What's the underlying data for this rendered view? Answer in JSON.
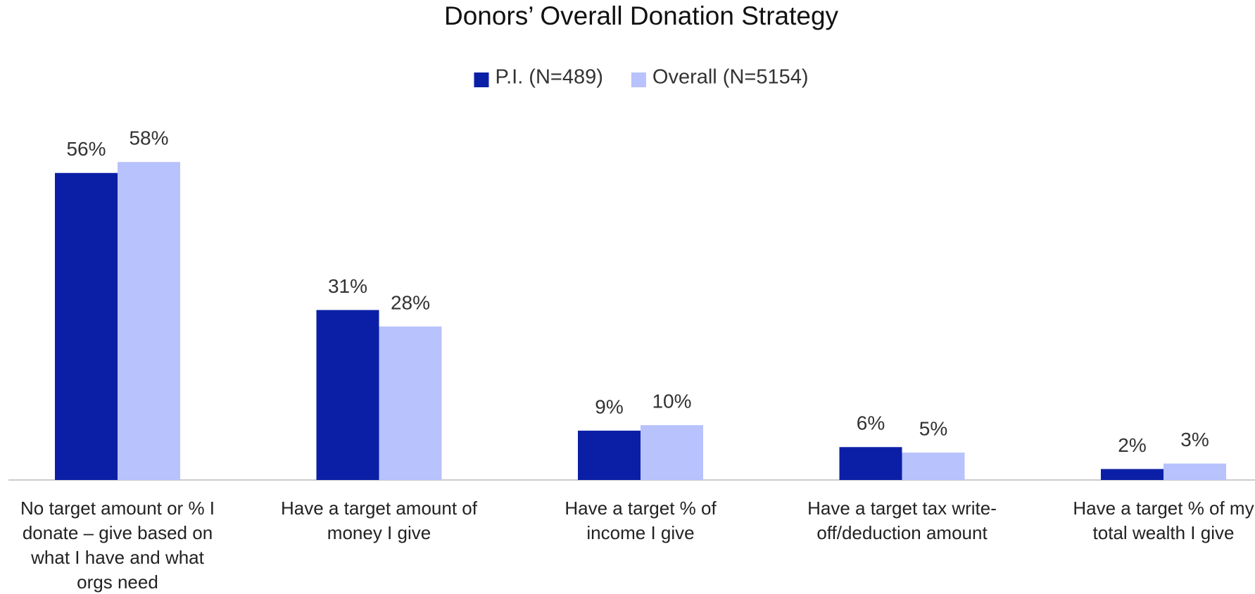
{
  "chart_data": {
    "type": "bar",
    "title": "Donors’ Overall Donation Strategy",
    "categories": [
      "No target amount or % I donate – give based on what I have and what orgs need",
      "Have a target amount of money I give",
      "Have a target % of income I give",
      "Have a target tax write-off/deduction amount",
      "Have a target % of my total wealth I give"
    ],
    "series": [
      {
        "name": "P.I. (N=489)",
        "color": "#0b1fa6",
        "values": [
          56,
          31,
          9,
          6,
          2
        ],
        "value_labels": [
          "56%",
          "31%",
          "9%",
          "6%",
          "2%"
        ]
      },
      {
        "name": "Overall (N=5154)",
        "color": "#b8c2fc",
        "values": [
          58,
          28,
          10,
          5,
          3
        ],
        "value_labels": [
          "58%",
          "28%",
          "10%",
          "5%",
          "3%"
        ]
      }
    ],
    "legend": "top"
  }
}
